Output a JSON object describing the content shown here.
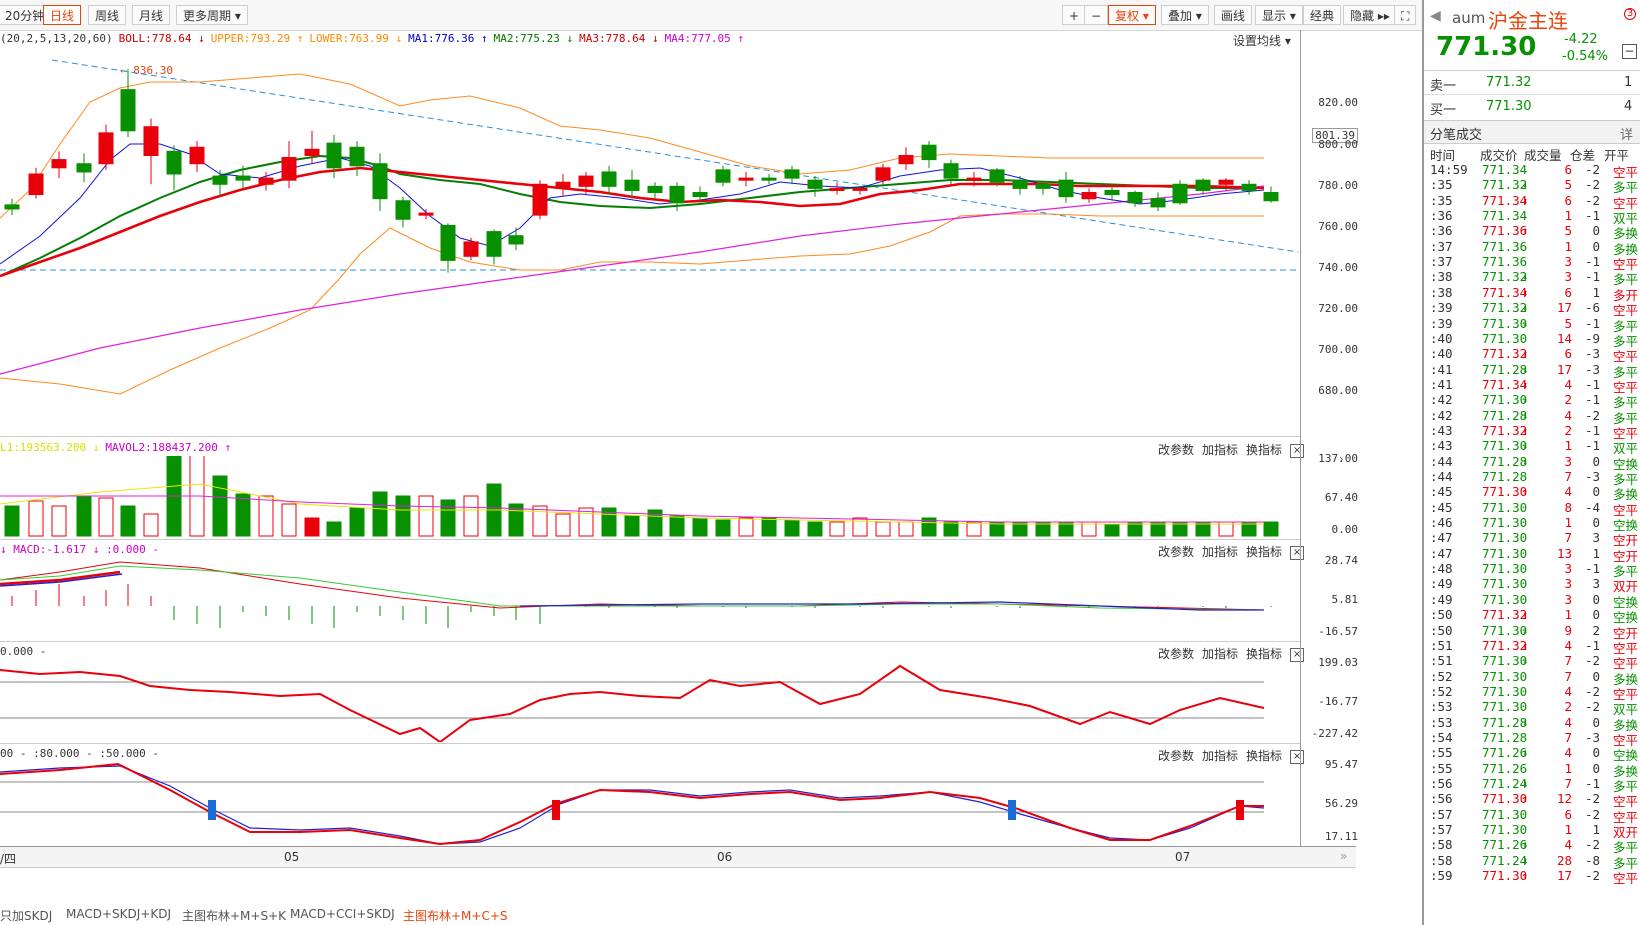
{
  "toolbar": {
    "periods": [
      "20分钟",
      "日线",
      "周线",
      "月线",
      "更多周期 ▾"
    ],
    "active_period": "日线",
    "right_buttons": [
      "+",
      "−",
      "复权 ▾",
      "叠加 ▾",
      "画线",
      "显示 ▾",
      "经典",
      "隐藏 ▸▸",
      "⛶"
    ]
  },
  "legend": {
    "params": "(20,2,5,13,20,60)",
    "items": [
      {
        "label": "BOLL:778.64 ↓",
        "color": "#cc0000"
      },
      {
        "label": "UPPER:793.29 ↑",
        "color": "#ff8800"
      },
      {
        "label": "LOWER:763.99 ↓",
        "color": "#ff8800"
      },
      {
        "label": "MA1:776.36 ↑",
        "color": "#0000cc"
      },
      {
        "label": "MA2:775.23 ↓",
        "color": "#007700"
      },
      {
        "label": "MA3:778.64 ↓",
        "color": "#cc0000"
      },
      {
        "label": "MA4:777.05 ↑",
        "color": "#cc00cc"
      }
    ],
    "set_ma": "设置均线 ▾",
    "high_label": "836.30"
  },
  "panel_tools": [
    "改参数",
    "加指标",
    "换指标"
  ],
  "vol_legend": {
    "mavol1": "L1:193563.200 ↓",
    "mavol2": "MAVOL2:188437.200 ↑"
  },
  "macd_legend": {
    "text": "↓ MACD:-1.617 ↓   :0.000 -"
  },
  "cci_legend": {
    "text": "0.000 -"
  },
  "skdj_legend": {
    "text": "00 - :80.000 - :50.000 -"
  },
  "main_axis": {
    "ticks": [
      "820.00",
      "801.39",
      "800.00",
      "780.00",
      "760.00",
      "740.00",
      "720.00",
      "700.00",
      "680.00"
    ]
  },
  "vol_axis": {
    "ticks": [
      "137.00",
      "67.40",
      "0.00"
    ]
  },
  "macd_axis": {
    "ticks": [
      "28.74",
      "5.81",
      "-16.57"
    ]
  },
  "cci_axis": {
    "ticks": [
      "199.03",
      "-16.77",
      "-227.42"
    ]
  },
  "skdj_axis": {
    "ticks": [
      "95.47",
      "56.29",
      "17.11"
    ]
  },
  "date_axis": {
    "labels": [
      "/四",
      "05",
      "06",
      "07"
    ]
  },
  "bottom_tabs": [
    {
      "label": "只加SKDJ",
      "active": false
    },
    {
      "label": "MACD+SKDJ+KDJ",
      "active": false
    },
    {
      "label": "主图布林+M+S+K",
      "active": false
    },
    {
      "label": "MACD+CCI+SKDJ",
      "active": false
    },
    {
      "label": "主图布林+M+C+S",
      "active": true
    }
  ],
  "quote": {
    "symbol": "aum",
    "name": "沪金主连",
    "price": "771.30",
    "change": "-4.22",
    "pct": "-0.54%",
    "ask_label": "卖一",
    "ask_price": "771.32",
    "ask_vol": "1",
    "bid_label": "买一",
    "bid_price": "771.30",
    "bid_vol": "4",
    "ticks_title": "分笔成交",
    "detail": "详",
    "headers": [
      "时间",
      "成交价",
      "成交量",
      "仓差",
      "开平"
    ]
  },
  "ticks": [
    [
      "14:59",
      "771.34",
      "",
      "6",
      "-2",
      "空平"
    ],
    [
      ":35",
      "771.32",
      "dn",
      "5",
      "-2",
      "多平"
    ],
    [
      ":35",
      "771.34",
      "up",
      "6",
      "-2",
      "空平"
    ],
    [
      ":36",
      "771.34",
      "",
      "1",
      "-1",
      "双平"
    ],
    [
      ":36",
      "771.36",
      "up",
      "5",
      "0",
      "多换"
    ],
    [
      ":37",
      "771.36",
      "",
      "1",
      "0",
      "多换"
    ],
    [
      ":37",
      "771.36",
      "",
      "3",
      "-1",
      "空平"
    ],
    [
      ":38",
      "771.32",
      "dn",
      "3",
      "-1",
      "多平"
    ],
    [
      ":38",
      "771.34",
      "up",
      "6",
      "1",
      "多开"
    ],
    [
      ":39",
      "771.32",
      "dn",
      "17",
      "-6",
      "空平"
    ],
    [
      ":39",
      "771.30",
      "dn",
      "5",
      "-1",
      "多平"
    ],
    [
      ":40",
      "771.30",
      "",
      "14",
      "-9",
      "多平"
    ],
    [
      ":40",
      "771.32",
      "up",
      "6",
      "-3",
      "空平"
    ],
    [
      ":41",
      "771.28",
      "dn",
      "17",
      "-3",
      "多平"
    ],
    [
      ":41",
      "771.34",
      "up",
      "4",
      "-1",
      "空平"
    ],
    [
      ":42",
      "771.30",
      "dn",
      "2",
      "-1",
      "多平"
    ],
    [
      ":42",
      "771.28",
      "dn",
      "4",
      "-2",
      "多平"
    ],
    [
      ":43",
      "771.32",
      "up",
      "2",
      "-1",
      "空平"
    ],
    [
      ":43",
      "771.30",
      "dn",
      "1",
      "-1",
      "双平"
    ],
    [
      ":44",
      "771.28",
      "dn",
      "3",
      "0",
      "空换"
    ],
    [
      ":44",
      "771.28",
      "",
      "7",
      "-3",
      "多平"
    ],
    [
      ":45",
      "771.30",
      "up",
      "4",
      "0",
      "多换"
    ],
    [
      ":45",
      "771.30",
      "",
      "8",
      "-4",
      "空平"
    ],
    [
      ":46",
      "771.30",
      "",
      "1",
      "0",
      "空换"
    ],
    [
      ":47",
      "771.30",
      "",
      "7",
      "3",
      "空开"
    ],
    [
      ":47",
      "771.30",
      "",
      "13",
      "1",
      "空开"
    ],
    [
      ":48",
      "771.30",
      "",
      "3",
      "-1",
      "多平"
    ],
    [
      ":49",
      "771.30",
      "",
      "3",
      "3",
      "双开"
    ],
    [
      ":49",
      "771.30",
      "",
      "3",
      "0",
      "空换"
    ],
    [
      ":50",
      "771.32",
      "up",
      "1",
      "0",
      "空换"
    ],
    [
      ":50",
      "771.30",
      "dn",
      "9",
      "2",
      "空开"
    ],
    [
      ":51",
      "771.32",
      "up",
      "4",
      "-1",
      "空平"
    ],
    [
      ":51",
      "771.30",
      "dn",
      "7",
      "-2",
      "空平"
    ],
    [
      ":52",
      "771.30",
      "",
      "7",
      "0",
      "多换"
    ],
    [
      ":52",
      "771.30",
      "",
      "4",
      "-2",
      "空平"
    ],
    [
      ":53",
      "771.30",
      "",
      "2",
      "-2",
      "双平"
    ],
    [
      ":53",
      "771.28",
      "dn",
      "4",
      "0",
      "多换"
    ],
    [
      ":54",
      "771.28",
      "",
      "7",
      "-3",
      "空平"
    ],
    [
      ":55",
      "771.26",
      "dn",
      "4",
      "0",
      "空换"
    ],
    [
      ":55",
      "771.26",
      "",
      "1",
      "0",
      "多换"
    ],
    [
      ":56",
      "771.24",
      "dn",
      "7",
      "-1",
      "多平"
    ],
    [
      ":56",
      "771.30",
      "up",
      "12",
      "-2",
      "空平"
    ],
    [
      ":57",
      "771.30",
      "",
      "6",
      "-2",
      "空平"
    ],
    [
      ":57",
      "771.30",
      "",
      "1",
      "1",
      "双开"
    ],
    [
      ":58",
      "771.26",
      "dn",
      "4",
      "-2",
      "多平"
    ],
    [
      ":58",
      "771.24",
      "dn",
      "28",
      "-8",
      "多平"
    ],
    [
      ":59",
      "771.30",
      "up",
      "17",
      "-2",
      "空平"
    ]
  ],
  "colors": {
    "up": "#e8000b",
    "down": "#079000",
    "accent": "#e8440a"
  }
}
